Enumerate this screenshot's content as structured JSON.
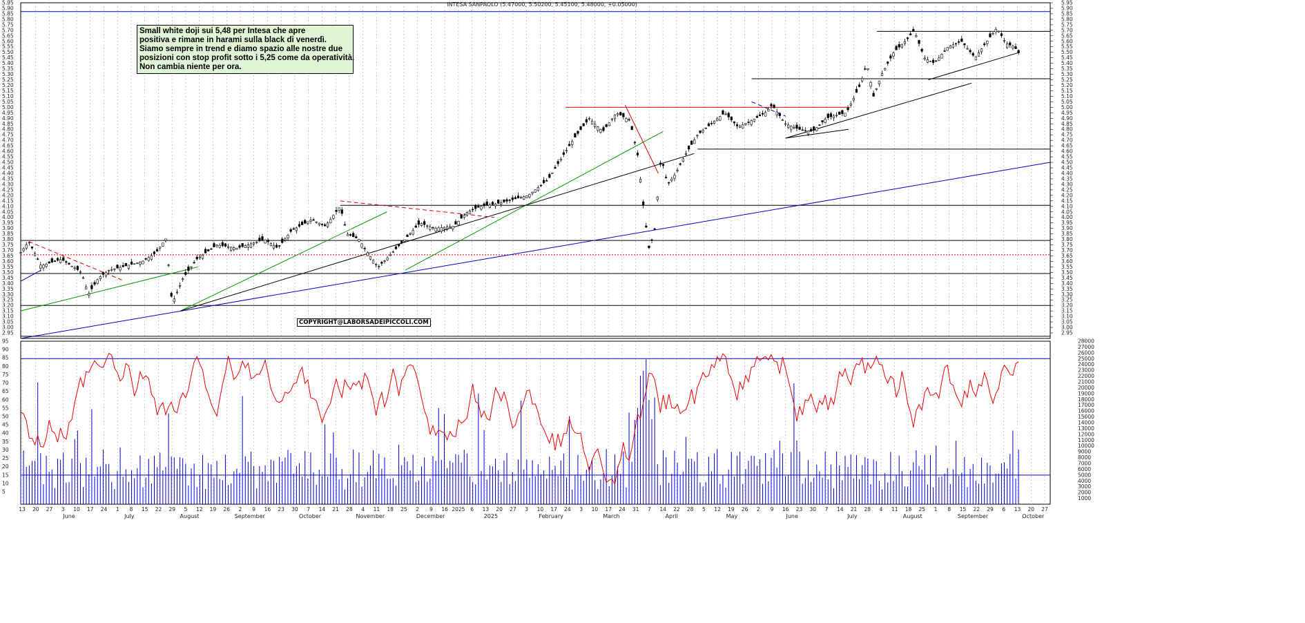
{
  "header": {
    "title": "INTESA SANPAOLO (5.47000, 5.50200, 5.45100, 5.48000, +0.05000)"
  },
  "annotation": {
    "lines": [
      "Small white doji sui 5,48 per Intesa che apre",
      "positiva e rimane in harami sulla black di venerdì.",
      "Siamo sempre in trend e diamo spazio alle nostre due",
      "posizioni con stop profit sotto i 5,25 come da operatività.",
      "Non cambia niente per ora."
    ]
  },
  "copyright": "COPYRIGHT@LABORSADEIPICCOLI.COM",
  "colors": {
    "price": "#000000",
    "blue_line": "#0000cc",
    "green_line": "#009900",
    "red_line": "#dd0000",
    "volume": "#0000cc",
    "oscillator": "#ee0000",
    "grid": "#999999"
  },
  "chart_data": [
    {
      "type": "candlestick",
      "title": "INTESA SANPAOLO (5.47000, 5.50200, 5.45100, 5.48000, +0.05000)",
      "ylim": [
        2.9,
        5.95
      ],
      "y_ticks": [
        "5.95",
        "5.90",
        "5.85",
        "5.80",
        "5.75",
        "5.70",
        "5.65",
        "5.60",
        "5.55",
        "5.50",
        "5.45",
        "5.40",
        "5.35",
        "5.30",
        "5.25",
        "5.20",
        "5.15",
        "5.10",
        "5.05",
        "5.00",
        "4.95",
        "4.90",
        "4.85",
        "4.80",
        "4.75",
        "4.70",
        "4.65",
        "4.60",
        "4.55",
        "4.50",
        "4.45",
        "4.40",
        "4.35",
        "4.30",
        "4.25",
        "4.20",
        "4.15",
        "4.10",
        "4.05",
        "4.00",
        "3.95",
        "3.90",
        "3.85",
        "3.80",
        "3.75",
        "3.70",
        "3.65",
        "3.60",
        "3.55",
        "3.50",
        "3.45",
        "3.40",
        "3.35",
        "3.30",
        "3.25",
        "3.20",
        "3.15",
        "3.10",
        "3.05",
        "3.00",
        "2.95"
      ],
      "last_bar": {
        "open": 5.47,
        "high": 5.502,
        "low": 5.451,
        "close": 5.48,
        "change": 0.05
      },
      "price_path": [
        [
          0,
          3.68
        ],
        [
          12,
          3.78
        ],
        [
          30,
          3.56
        ],
        [
          60,
          3.62
        ],
        [
          90,
          3.5
        ],
        [
          100,
          3.3
        ],
        [
          115,
          3.45
        ],
        [
          130,
          3.52
        ],
        [
          150,
          3.55
        ],
        [
          180,
          3.6
        ],
        [
          200,
          3.68
        ],
        [
          216,
          3.82
        ],
        [
          220,
          3.4
        ],
        [
          224,
          3.22
        ],
        [
          240,
          3.45
        ],
        [
          260,
          3.62
        ],
        [
          290,
          3.75
        ],
        [
          320,
          3.72
        ],
        [
          360,
          3.8
        ],
        [
          380,
          3.72
        ],
        [
          400,
          3.88
        ],
        [
          430,
          3.98
        ],
        [
          450,
          3.92
        ],
        [
          472,
          4.1
        ],
        [
          482,
          3.85
        ],
        [
          500,
          3.8
        ],
        [
          510,
          3.7
        ],
        [
          528,
          3.55
        ],
        [
          540,
          3.62
        ],
        [
          560,
          3.75
        ],
        [
          590,
          3.95
        ],
        [
          610,
          3.9
        ],
        [
          640,
          3.92
        ],
        [
          660,
          4.05
        ],
        [
          680,
          4.1
        ],
        [
          700,
          4.12
        ],
        [
          720,
          4.15
        ],
        [
          750,
          4.2
        ],
        [
          780,
          4.35
        ],
        [
          800,
          4.55
        ],
        [
          818,
          4.72
        ],
        [
          840,
          4.9
        ],
        [
          860,
          4.78
        ],
        [
          880,
          4.95
        ],
        [
          900,
          4.88
        ],
        [
          912,
          4.55
        ],
        [
          920,
          4.1
        ],
        [
          928,
          3.72
        ],
        [
          936,
          3.85
        ],
        [
          946,
          4.55
        ],
        [
          956,
          4.3
        ],
        [
          968,
          4.4
        ],
        [
          980,
          4.55
        ],
        [
          1000,
          4.75
        ],
        [
          1020,
          4.85
        ],
        [
          1040,
          4.95
        ],
        [
          1060,
          4.82
        ],
        [
          1080,
          4.88
        ],
        [
          1100,
          4.95
        ],
        [
          1110,
          5.02
        ],
        [
          1130,
          4.85
        ],
        [
          1150,
          4.8
        ],
        [
          1170,
          4.78
        ],
        [
          1190,
          4.9
        ],
        [
          1200,
          4.92
        ],
        [
          1220,
          4.95
        ],
        [
          1240,
          5.2
        ],
        [
          1250,
          5.4
        ],
        [
          1260,
          5.1
        ],
        [
          1272,
          5.3
        ],
        [
          1290,
          5.5
        ],
        [
          1310,
          5.62
        ],
        [
          1320,
          5.7
        ],
        [
          1335,
          5.45
        ],
        [
          1350,
          5.4
        ],
        [
          1370,
          5.55
        ],
        [
          1390,
          5.6
        ],
        [
          1410,
          5.45
        ],
        [
          1430,
          5.62
        ],
        [
          1442,
          5.72
        ],
        [
          1456,
          5.58
        ],
        [
          1468,
          5.55
        ],
        [
          1476,
          5.48
        ]
      ],
      "trend_lines": [
        {
          "color": "blue",
          "from": [
            0,
            2.9
          ],
          "to": [
            1521,
            4.5
          ]
        },
        {
          "color": "blue",
          "from": [
            0,
            3.42
          ],
          "to": [
            30,
            3.52
          ]
        },
        {
          "color": "green",
          "from": [
            0,
            3.15
          ],
          "to": [
            262,
            3.55
          ]
        },
        {
          "color": "green",
          "from": [
            236,
            3.15
          ],
          "to": [
            541,
            4.05
          ]
        },
        {
          "color": "green",
          "from": [
            568,
            3.52
          ],
          "to": [
            949,
            4.78
          ]
        },
        {
          "color": "black",
          "from": [
            236,
            3.15
          ],
          "to": [
            995,
            4.58
          ]
        },
        {
          "color": "black",
          "from": [
            1130,
            4.72
          ],
          "to": [
            1405,
            5.22
          ]
        },
        {
          "color": "black",
          "from": [
            1130,
            4.72
          ],
          "to": [
            1223,
            4.8
          ]
        },
        {
          "color": "black",
          "from": [
            1341,
            5.25
          ],
          "to": [
            1476,
            5.5
          ]
        },
        {
          "color": "red_dashed",
          "from": [
            12,
            3.78
          ],
          "to": [
            150,
            3.43
          ]
        },
        {
          "color": "red_dashed",
          "from": [
            472,
            4.15
          ],
          "to": [
            700,
            4.0
          ]
        },
        {
          "color": "red",
          "from": [
            893,
            5.02
          ],
          "to": [
            942,
            4.4
          ]
        },
        {
          "color": "blue_dashed",
          "from": [
            1080,
            5.05
          ],
          "to": [
            1130,
            4.92
          ]
        }
      ],
      "horizontal_levels": [
        {
          "value": 5.87,
          "color": "blue",
          "label": ""
        },
        {
          "value": 5.69,
          "color": "black"
        },
        {
          "value": 5.26,
          "color": "black"
        },
        {
          "value": 5.0,
          "color": "red"
        },
        {
          "value": 4.62,
          "color": "black"
        },
        {
          "value": 4.11,
          "color": "black"
        },
        {
          "value": 3.79,
          "color": "black"
        },
        {
          "value": 3.66,
          "color": "red_dotted"
        },
        {
          "value": 3.49,
          "color": "black"
        },
        {
          "value": 3.2,
          "color": "black"
        },
        {
          "value": 2.92,
          "color": "black"
        }
      ],
      "x_labels": [
        "13",
        "20",
        "27",
        "3",
        "10",
        "17",
        "24",
        "1",
        "8",
        "15",
        "22",
        "29",
        "5",
        "12",
        "19",
        "26",
        "2",
        "9",
        "16",
        "23",
        "30",
        "7",
        "14",
        "21",
        "28",
        "4",
        "11",
        "18",
        "25",
        "2",
        "9",
        "16",
        "2025",
        "6",
        "13",
        "20",
        "27",
        "3",
        "10",
        "17",
        "24",
        "3",
        "10",
        "17",
        "24",
        "31",
        "7",
        "14",
        "22",
        "28",
        "5",
        "12",
        "19",
        "26",
        "2",
        "9",
        "16",
        "23",
        "30",
        "7",
        "14",
        "21",
        "28",
        "4",
        "11",
        "18",
        "25",
        "1",
        "8",
        "15",
        "22",
        "29",
        "6",
        "13",
        "20",
        "27"
      ],
      "months": [
        "June",
        "July",
        "August",
        "September",
        "October",
        "November",
        "December",
        "2025",
        "February",
        "March",
        "April",
        "May",
        "June",
        "July",
        "August",
        "September",
        "October"
      ]
    },
    {
      "type": "bar+line",
      "title": "",
      "volume_ylim": [
        0,
        28000
      ],
      "oscillator_ylim": [
        0,
        95
      ],
      "volume_ticks": [
        "28000",
        "27000",
        "26000",
        "25000",
        "24000",
        "23000",
        "22000",
        "21000",
        "20000",
        "19000",
        "18000",
        "17000",
        "16000",
        "15000",
        "14000",
        "13000",
        "12000",
        "11000",
        "10000",
        "9000",
        "8000",
        "7000",
        "6000",
        "5000",
        "4000",
        "3000",
        "2000",
        "1000"
      ],
      "oscillator_ticks": [
        "95",
        "90",
        "85",
        "80",
        "75",
        "70",
        "65",
        "60",
        "55",
        "50",
        "45",
        "40",
        "35",
        "30",
        "25",
        "20",
        "15",
        "10",
        "5"
      ],
      "levels": [
        25000,
        5000
      ]
    }
  ]
}
